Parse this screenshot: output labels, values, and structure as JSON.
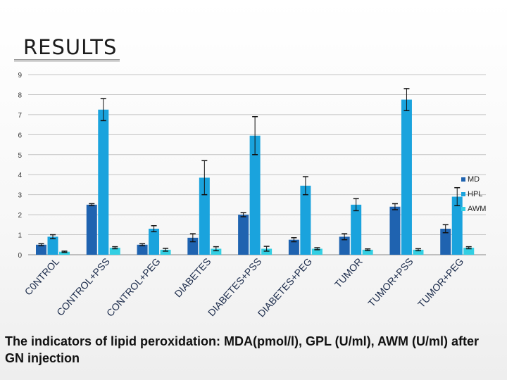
{
  "title": "RESULTS",
  "caption": "The indicators of lipid peroxidation: MDA(pmol/l), GPL (U/ml), AWM (U/ml) after GN injection",
  "colors": {
    "MD": "#1f63b0",
    "HPL": "#1aa3dd",
    "AWM": "#33cfe3",
    "grid": "#c4c4c4",
    "axis": "#888888"
  },
  "chart_data": {
    "type": "bar",
    "title": "",
    "xlabel": "",
    "ylabel": "",
    "ylim": [
      0,
      9
    ],
    "yticks": [
      0,
      1,
      2,
      3,
      4,
      5,
      6,
      7,
      8,
      9
    ],
    "grid": true,
    "legend_position": "right",
    "categories": [
      "C0NTROL",
      "CONTROL+PSS",
      "CONTROL+PEG",
      "DIABETES",
      "DIABETES+PSS",
      "DIABETES+PEG",
      "TUMOR",
      "TUMOR+PSS",
      "TUMOR+PEG"
    ],
    "series": [
      {
        "name": "MD",
        "values": [
          0.5,
          2.5,
          0.5,
          0.85,
          2.0,
          0.75,
          0.9,
          2.4,
          1.3
        ],
        "errors": [
          0.05,
          0.05,
          0.05,
          0.2,
          0.1,
          0.1,
          0.15,
          0.15,
          0.2
        ]
      },
      {
        "name": "HPL",
        "values": [
          0.9,
          7.25,
          1.3,
          3.85,
          5.95,
          3.45,
          2.5,
          7.75,
          2.9
        ],
        "errors": [
          0.1,
          0.55,
          0.15,
          0.85,
          0.95,
          0.45,
          0.3,
          0.55,
          0.45
        ]
      },
      {
        "name": "AWM",
        "values": [
          0.15,
          0.35,
          0.25,
          0.3,
          0.3,
          0.3,
          0.25,
          0.25,
          0.35
        ],
        "errors": [
          0.03,
          0.05,
          0.07,
          0.1,
          0.12,
          0.05,
          0.04,
          0.05,
          0.05
        ]
      }
    ]
  }
}
